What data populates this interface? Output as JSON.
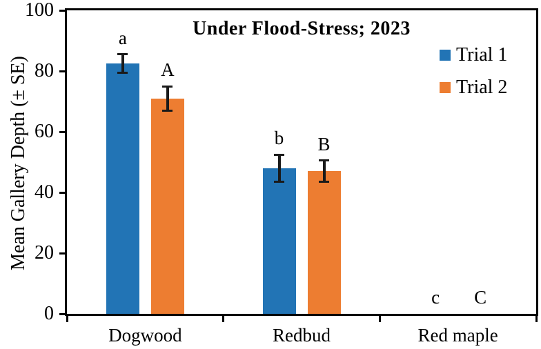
{
  "figure": {
    "background": "#ffffff",
    "frame_color": "#000000"
  },
  "chart_data": {
    "type": "bar",
    "title": "Under Flood-Stress; 2023",
    "ylabel": "Mean Gallery Depth (± SE)",
    "xlabel": "",
    "ylim": [
      0,
      100
    ],
    "yticks": [
      0,
      20,
      40,
      60,
      80,
      100
    ],
    "grid": false,
    "categories": [
      "Dogwood",
      "Redbud",
      "Red maple"
    ],
    "series": [
      {
        "name": "Trial 1",
        "color": "#2274b5",
        "values": [
          82.5,
          48,
          0
        ],
        "se": [
          3,
          4.5,
          0
        ],
        "sig_letters": [
          "a",
          "b",
          "c"
        ]
      },
      {
        "name": "Trial 2",
        "color": "#ed7d31",
        "values": [
          71,
          47,
          0
        ],
        "se": [
          4,
          3.5,
          0
        ],
        "sig_letters": [
          "A",
          "B",
          "C"
        ]
      }
    ],
    "error_bar_color": "#1a1a1a",
    "legend": {
      "position": "top-right",
      "entries": [
        "Trial 1",
        "Trial 2"
      ]
    }
  }
}
